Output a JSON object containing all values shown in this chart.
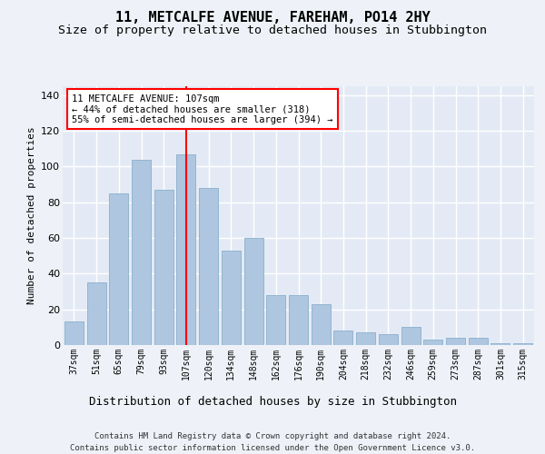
{
  "title": "11, METCALFE AVENUE, FAREHAM, PO14 2HY",
  "subtitle": "Size of property relative to detached houses in Stubbington",
  "xlabel": "Distribution of detached houses by size in Stubbington",
  "ylabel": "Number of detached properties",
  "categories": [
    "37sqm",
    "51sqm",
    "65sqm",
    "79sqm",
    "93sqm",
    "107sqm",
    "120sqm",
    "134sqm",
    "148sqm",
    "162sqm",
    "176sqm",
    "190sqm",
    "204sqm",
    "218sqm",
    "232sqm",
    "246sqm",
    "259sqm",
    "273sqm",
    "287sqm",
    "301sqm",
    "315sqm"
  ],
  "values": [
    13,
    35,
    85,
    104,
    87,
    107,
    88,
    53,
    60,
    28,
    28,
    23,
    8,
    7,
    6,
    10,
    3,
    4,
    4,
    1,
    1
  ],
  "bar_color": "#aec6df",
  "bar_edgecolor": "#8ab0cc",
  "vline_x": 5,
  "vline_color": "red",
  "annotation_text": "11 METCALFE AVENUE: 107sqm\n← 44% of detached houses are smaller (318)\n55% of semi-detached houses are larger (394) →",
  "annotation_box_color": "white",
  "annotation_box_edgecolor": "red",
  "footer": "Contains HM Land Registry data © Crown copyright and database right 2024.\nContains public sector information licensed under the Open Government Licence v3.0.",
  "ylim": [
    0,
    145
  ],
  "background_color": "#eef2f8",
  "plot_background": "#e4eaf5",
  "grid_color": "white",
  "title_fontsize": 11,
  "subtitle_fontsize": 9.5,
  "yticks": [
    0,
    20,
    40,
    60,
    80,
    100,
    120,
    140
  ]
}
